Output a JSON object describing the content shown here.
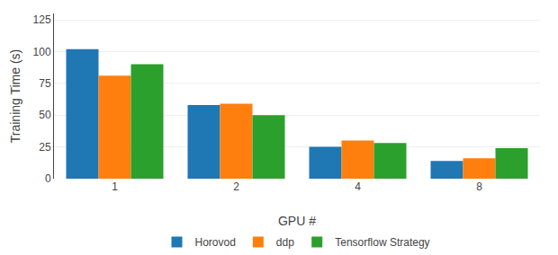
{
  "chart_data": {
    "type": "bar",
    "categories": [
      "1",
      "2",
      "4",
      "8"
    ],
    "series": [
      {
        "name": "Horovod",
        "values": [
          102,
          58,
          25,
          14
        ]
      },
      {
        "name": "ddp",
        "values": [
          81,
          59,
          30,
          16
        ]
      },
      {
        "name": "Tensorflow Strategy",
        "values": [
          90,
          50,
          28,
          24
        ]
      }
    ],
    "xlabel": "GPU #",
    "ylabel": "Training Time (s)",
    "ylim": [
      0,
      130
    ],
    "yticks": [
      0,
      25,
      50,
      75,
      100,
      125
    ],
    "grid": true,
    "legend": "bottom"
  }
}
